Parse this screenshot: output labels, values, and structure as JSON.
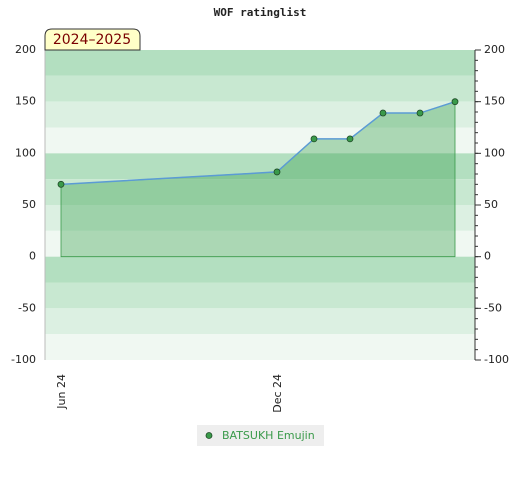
{
  "badge": "2024–2025",
  "chart_data": {
    "type": "area",
    "title": "WOF ratinglist",
    "categories": [
      "Jun 24",
      "Dec 24",
      null,
      null,
      null,
      null,
      null
    ],
    "series": [
      {
        "name": "BATSUKH Emujin",
        "color": "#3a9a4a",
        "values": [
          70,
          82,
          114,
          114,
          139,
          139,
          150
        ]
      }
    ],
    "ylim": [
      -100,
      200
    ],
    "yticks": [
      -100,
      -50,
      0,
      50,
      100,
      150,
      200
    ],
    "y2lim": [
      -100,
      200
    ],
    "y2ticks": [
      -100,
      -50,
      0,
      50,
      100,
      150,
      200
    ],
    "legend": "bottom"
  }
}
